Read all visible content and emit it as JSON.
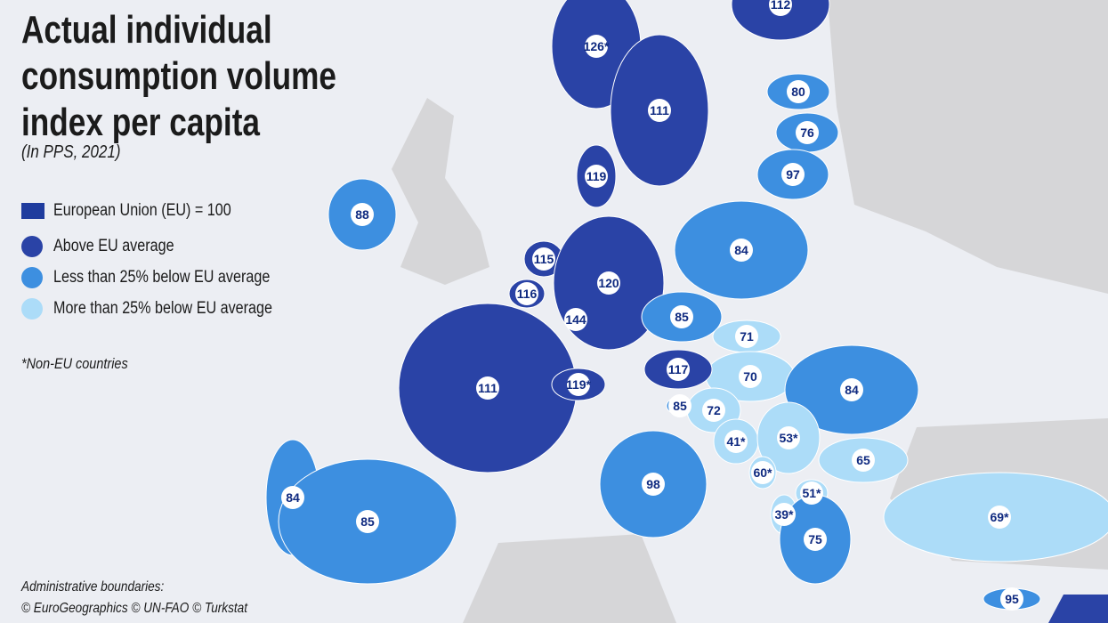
{
  "header": {
    "title": "Actual individual consumption volume index per capita",
    "subtitle": "(In PPS, 2021)"
  },
  "legend": {
    "reference": "European Union (EU) = 100",
    "items": [
      {
        "label": "Above EU average",
        "color": "#2a43a6"
      },
      {
        "label": "Less than 25% below EU average",
        "color": "#3d8fe0"
      },
      {
        "label": "More than 25% below EU average",
        "color": "#acdcf8"
      }
    ]
  },
  "note": "*Non-EU countries",
  "source": {
    "title": "Administrative boundaries:",
    "text": "© EuroGeographics © UN-FAO © Turkstat"
  },
  "markers": [
    {
      "label": "112",
      "color": "#2a43a6"
    },
    {
      "label": "126*",
      "color": "#2a43a6"
    },
    {
      "label": "111",
      "color": "#2a43a6"
    },
    {
      "label": "80",
      "color": "#3d8fe0"
    },
    {
      "label": "76",
      "color": "#3d8fe0"
    },
    {
      "label": "97",
      "color": "#3d8fe0"
    },
    {
      "label": "119",
      "color": "#2a43a6"
    },
    {
      "label": "88",
      "color": "#3d8fe0"
    },
    {
      "label": "84",
      "color": "#3d8fe0"
    },
    {
      "label": "115",
      "color": "#2a43a6"
    },
    {
      "label": "120",
      "color": "#2a43a6"
    },
    {
      "label": "116",
      "color": "#2a43a6"
    },
    {
      "label": "144",
      "color": "#2a43a6"
    },
    {
      "label": "85",
      "color": "#3d8fe0"
    },
    {
      "label": "71",
      "color": "#acdcf8"
    },
    {
      "label": "70",
      "color": "#acdcf8"
    },
    {
      "label": "117",
      "color": "#2a43a6"
    },
    {
      "label": "111",
      "color": "#2a43a6"
    },
    {
      "label": "119*",
      "color": "#2a43a6"
    },
    {
      "label": "84",
      "color": "#3d8fe0"
    },
    {
      "label": "85",
      "color": "#3d8fe0"
    },
    {
      "label": "72",
      "color": "#acdcf8"
    },
    {
      "label": "41*",
      "color": "#acdcf8"
    },
    {
      "label": "53*",
      "color": "#acdcf8"
    },
    {
      "label": "65",
      "color": "#acdcf8"
    },
    {
      "label": "60*",
      "color": "#acdcf8"
    },
    {
      "label": "98",
      "color": "#3d8fe0"
    },
    {
      "label": "84",
      "color": "#3d8fe0"
    },
    {
      "label": "85",
      "color": "#3d8fe0"
    },
    {
      "label": "51*",
      "color": "#acdcf8"
    },
    {
      "label": "39*",
      "color": "#acdcf8"
    },
    {
      "label": "69*",
      "color": "#acdcf8"
    },
    {
      "label": "75",
      "color": "#3d8fe0"
    },
    {
      "label": "95",
      "color": "#3d8fe0"
    }
  ]
}
